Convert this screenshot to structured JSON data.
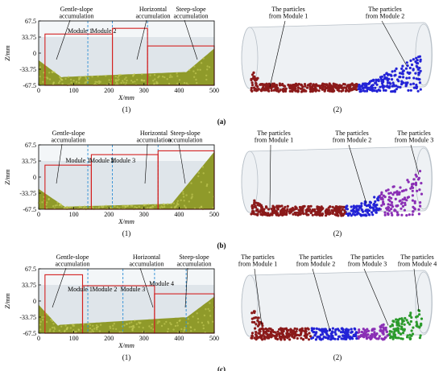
{
  "colors": {
    "particle_module_1": "#8b1a1a",
    "particle_module_2": "#2323d6",
    "particle_module_3": "#8a2fb5",
    "particle_module_4": "#2b9a2b",
    "accumulation_fill": "#8f9a2a",
    "module_box": "#d42020",
    "module_divider": "#2e8fd6",
    "pipe_tint": "#dfe5ea"
  },
  "axes": {
    "xlabel": "X/mm",
    "ylabel": "Z/mm",
    "xticks": [
      "0",
      "100",
      "200",
      "300",
      "400",
      "500"
    ],
    "yticks": [
      "67.5",
      "33.75",
      "0",
      "-33.75",
      "-67.5"
    ]
  },
  "rows": [
    {
      "caption": "(a)",
      "left": {
        "panel_label": "(1)",
        "accumulations": [
          "Gentle-slope\naccumulation",
          "Horizontal\naccumulation",
          "Steep-slope\naccumulation"
        ],
        "modules": [
          "Module 1",
          "Module 2"
        ]
      },
      "right": {
        "panel_label": "(2)",
        "particle_labels": [
          "The particles\nfrom Module 1",
          "The particles\nfrom Module 2"
        ]
      }
    },
    {
      "caption": "(b)",
      "left": {
        "panel_label": "(1)",
        "accumulations": [
          "Gentle-slope\naccumulation",
          "Horizontal\naccumulation",
          "Steep-slope\naccumulation"
        ],
        "modules": [
          "Module 1",
          "Module 2",
          "Module 3"
        ]
      },
      "right": {
        "panel_label": "(2)",
        "particle_labels": [
          "The particles\nfrom Module 1",
          "The particles\nfrom Module 2",
          "The particles\nfrom Module 3"
        ]
      }
    },
    {
      "caption": "(c)",
      "left": {
        "panel_label": "(1)",
        "accumulations": [
          "Gentle-slope\naccumulation",
          "Horizontal\naccumulation",
          "Steep-slope\naccumulation"
        ],
        "modules": [
          "Module 1",
          "Module 2",
          "Module 3",
          "Module 4"
        ]
      },
      "right": {
        "panel_label": "(2)",
        "particle_labels": [
          "The particles\nfrom Module 1",
          "The particles\nfrom Module 2",
          "The particles\nfrom Module 3",
          "The particles\nfrom Module 4"
        ]
      }
    }
  ]
}
